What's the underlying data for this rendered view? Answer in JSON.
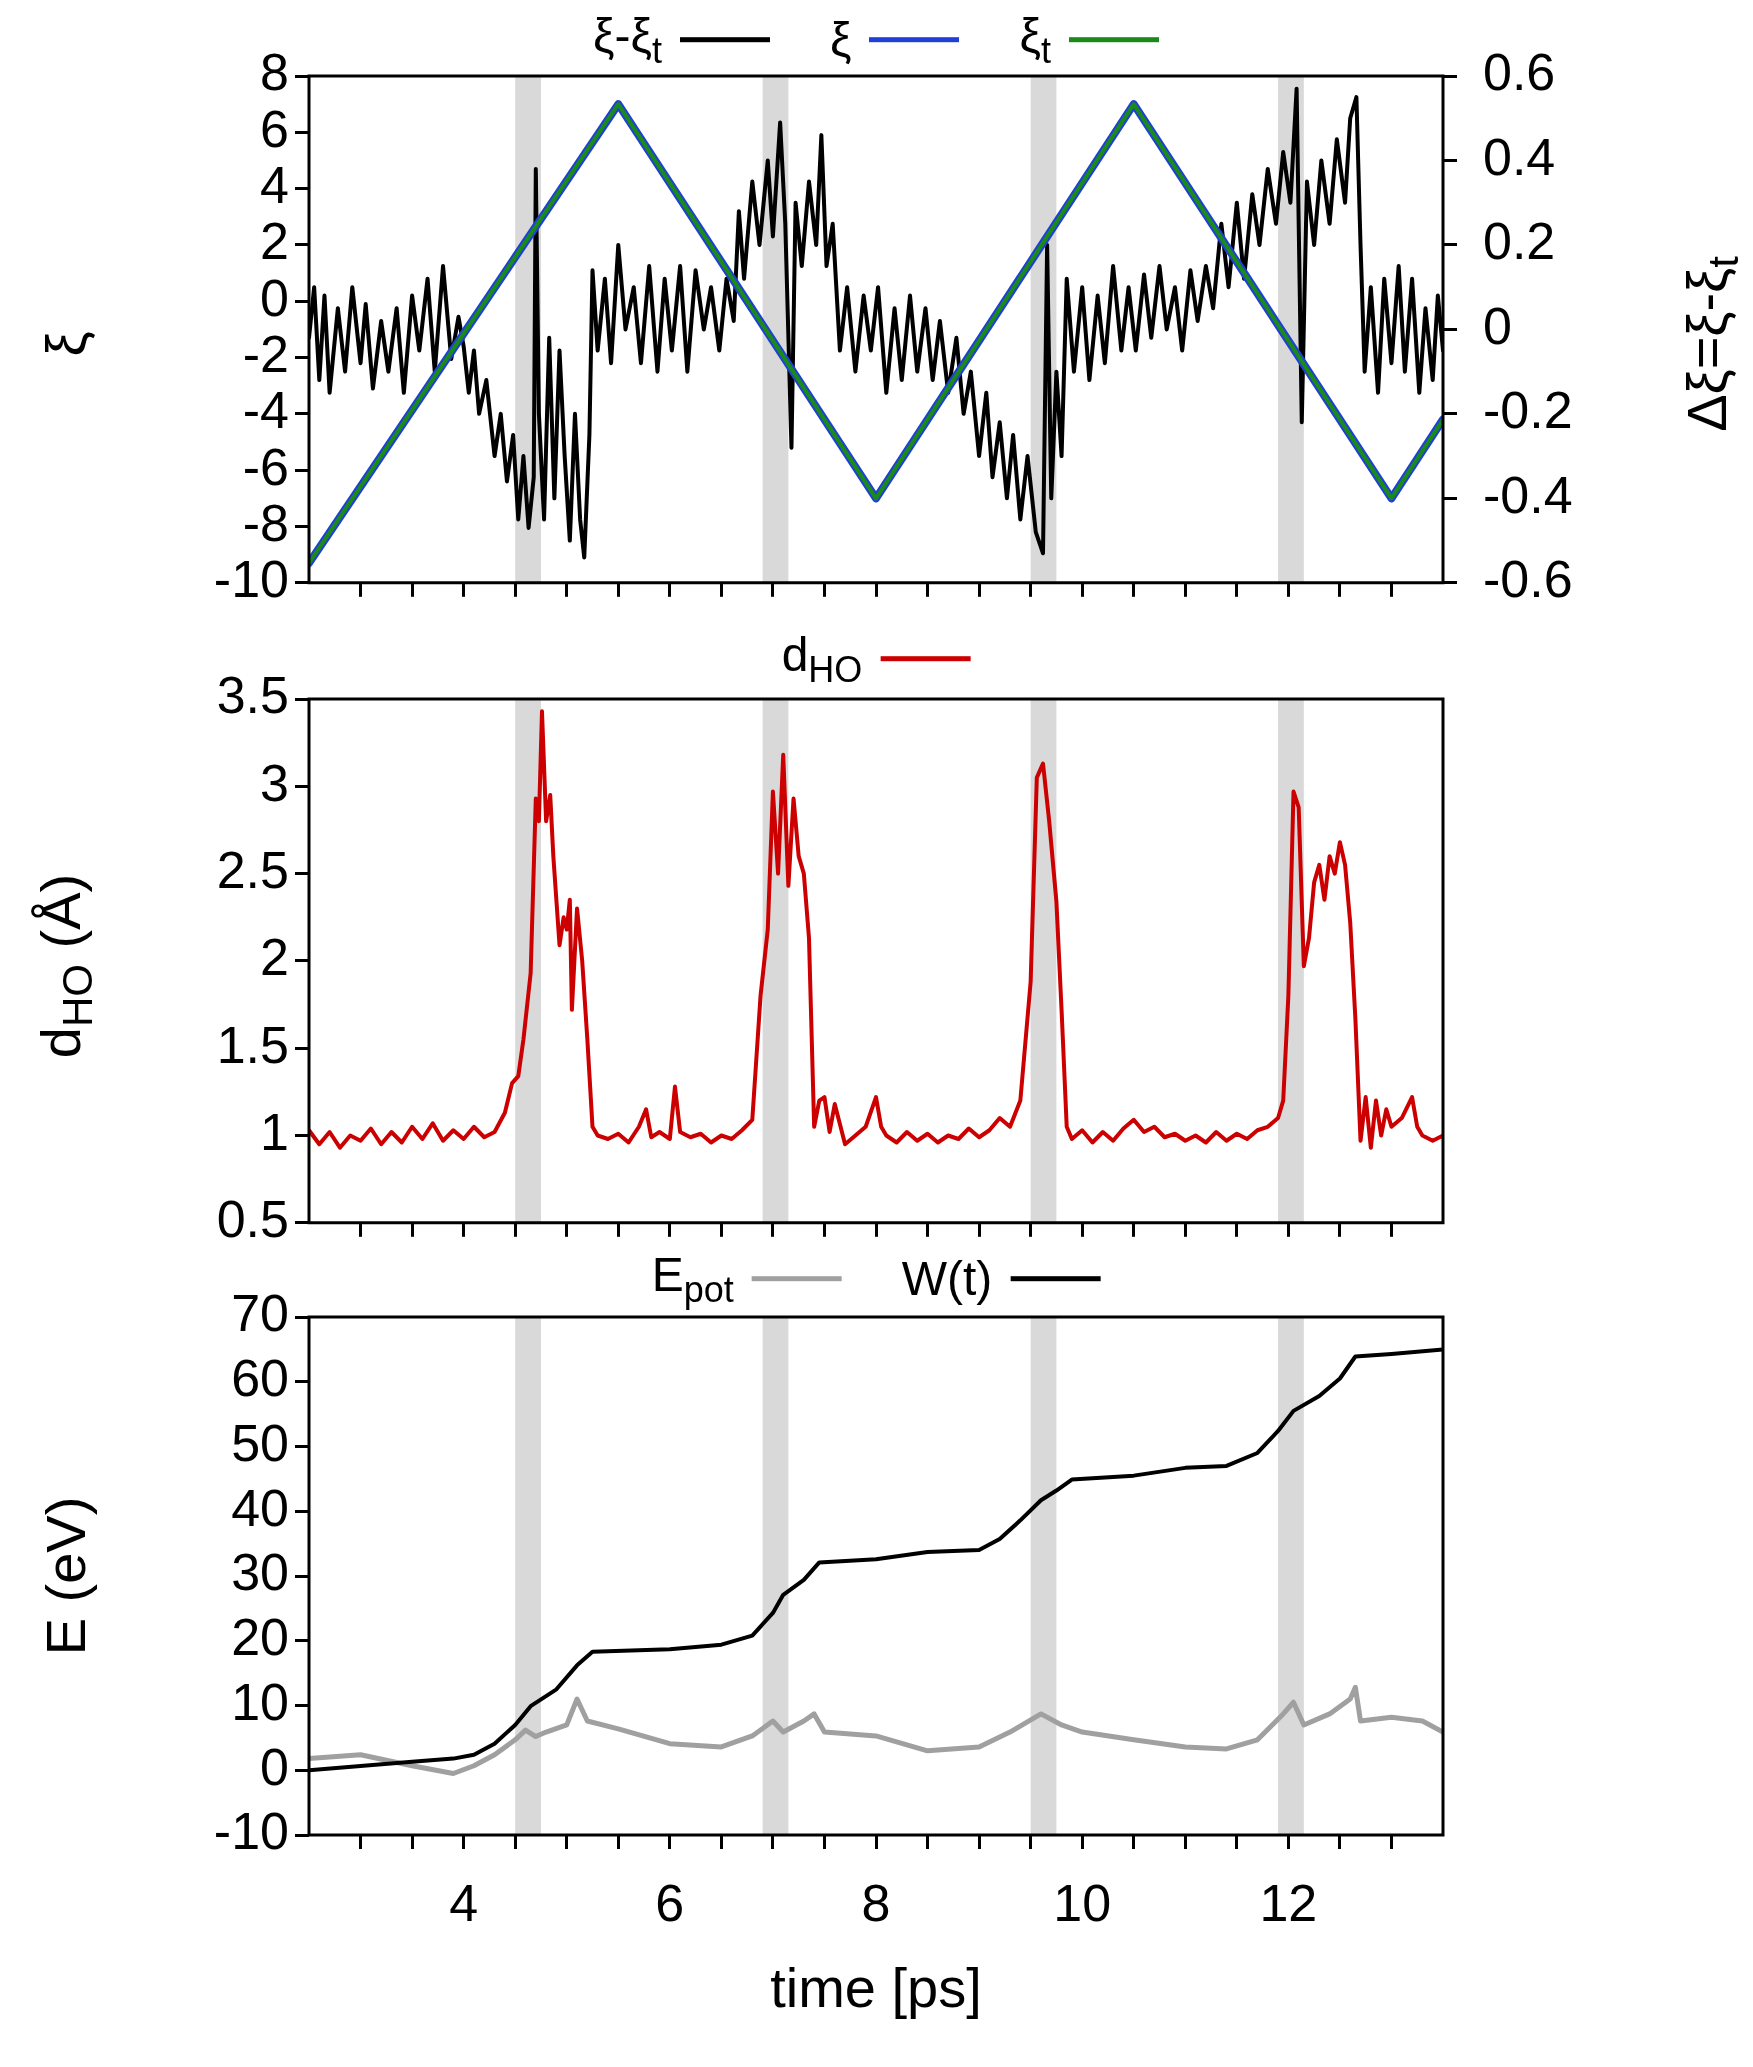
{
  "chart_data": [
    {
      "type": "line",
      "ylabel": "ξ",
      "y2label": "Δξ=ξ-ξ$_{t}$",
      "legend": "top",
      "tick_labels": "y",
      "xlim": [
        2.5,
        13.5
      ],
      "xticks": [
        {
          "value": 3,
          "label": null
        },
        {
          "value": 3.5,
          "label": null
        },
        4,
        {
          "value": 4.5,
          "label": null
        },
        {
          "value": 5,
          "label": null
        },
        {
          "value": 5.5,
          "label": null
        },
        6,
        {
          "value": 6.5,
          "label": null
        },
        {
          "value": 7,
          "label": null
        },
        {
          "value": 7.5,
          "label": null
        },
        8,
        {
          "value": 8.5,
          "label": null
        },
        {
          "value": 9,
          "label": null
        },
        {
          "value": 9.5,
          "label": null
        },
        10,
        {
          "value": 10.5,
          "label": null
        },
        {
          "value": 11,
          "label": null
        },
        {
          "value": 11.5,
          "label": null
        },
        12,
        {
          "value": 12.5,
          "label": null
        },
        {
          "value": 13,
          "label": null
        }
      ],
      "ylim": [
        -10,
        8
      ],
      "yticks": [
        -10,
        -8,
        -6,
        -4,
        -2,
        0,
        2,
        4,
        6,
        8
      ],
      "y2lim": [
        -0.6,
        0.6
      ],
      "y2ticks": [
        -0.6,
        -0.4,
        -0.2,
        0,
        0.2,
        0.4,
        0.6
      ],
      "bands": [
        {
          "axis": "x",
          "from": 4.5,
          "to": 4.75,
          "color": "#d9d9d9"
        },
        {
          "axis": "x",
          "from": 6.9,
          "to": 7.15,
          "color": "#d9d9d9"
        },
        {
          "axis": "x",
          "from": 9.5,
          "to": 9.75,
          "color": "#d9d9d9"
        },
        {
          "axis": "x",
          "from": 11.9,
          "to": 12.15,
          "color": "#d9d9d9"
        }
      ],
      "series": [
        {
          "name": "ξ-ξ$_{t}$",
          "color": "#000000",
          "axis": "y2",
          "x": [
            2.5,
            2.55,
            2.6,
            2.65,
            2.7,
            2.78,
            2.85,
            2.92,
            3.0,
            3.05,
            3.12,
            3.2,
            3.27,
            3.35,
            3.42,
            3.5,
            3.57,
            3.65,
            3.72,
            3.8,
            3.88,
            3.95,
            4.0,
            4.05,
            4.1,
            4.15,
            4.22,
            4.3,
            4.36,
            4.42,
            4.48,
            4.53,
            4.58,
            4.63,
            4.68,
            4.7,
            4.73,
            4.78,
            4.83,
            4.88,
            4.93,
            4.98,
            5.03,
            5.08,
            5.13,
            5.17,
            5.22,
            5.25,
            5.3,
            5.37,
            5.43,
            5.5,
            5.57,
            5.65,
            5.72,
            5.8,
            5.88,
            5.95,
            6.02,
            6.1,
            6.17,
            6.25,
            6.33,
            6.4,
            6.48,
            6.55,
            6.62,
            6.67,
            6.72,
            6.8,
            6.87,
            6.95,
            7.0,
            7.07,
            7.12,
            7.18,
            7.22,
            7.28,
            7.35,
            7.42,
            7.47,
            7.52,
            7.58,
            7.65,
            7.72,
            7.8,
            7.88,
            7.95,
            8.02,
            8.1,
            8.18,
            8.25,
            8.33,
            8.4,
            8.48,
            8.55,
            8.62,
            8.7,
            8.78,
            8.85,
            8.92,
            9.0,
            9.07,
            9.13,
            9.2,
            9.27,
            9.33,
            9.4,
            9.47,
            9.55,
            9.62,
            9.66,
            9.7,
            9.75,
            9.8,
            9.85,
            9.92,
            10.0,
            10.07,
            10.15,
            10.22,
            10.3,
            10.38,
            10.45,
            10.52,
            10.6,
            10.67,
            10.75,
            10.82,
            10.9,
            10.97,
            11.05,
            11.12,
            11.2,
            11.27,
            11.35,
            11.42,
            11.5,
            11.57,
            11.65,
            11.72,
            11.8,
            11.88,
            11.95,
            12.02,
            12.08,
            12.13,
            12.18,
            12.25,
            12.32,
            12.4,
            12.47,
            12.55,
            12.6,
            12.66,
            12.7,
            12.74,
            12.8,
            12.87,
            12.93,
            13.0,
            13.07,
            13.13,
            13.2,
            13.27,
            13.33,
            13.4,
            13.45,
            13.5
          ],
          "values": [
            -0.02,
            0.1,
            -0.12,
            0.08,
            -0.15,
            0.05,
            -0.1,
            0.1,
            -0.08,
            0.06,
            -0.14,
            0.02,
            -0.1,
            0.05,
            -0.15,
            0.08,
            -0.05,
            0.12,
            -0.1,
            0.15,
            -0.07,
            0.03,
            -0.04,
            -0.15,
            -0.05,
            -0.2,
            -0.12,
            -0.3,
            -0.2,
            -0.36,
            -0.25,
            -0.45,
            -0.3,
            -0.47,
            -0.35,
            0.38,
            -0.2,
            -0.45,
            -0.02,
            -0.4,
            -0.05,
            -0.3,
            -0.5,
            -0.2,
            -0.45,
            -0.54,
            -0.25,
            0.14,
            -0.05,
            0.12,
            -0.08,
            0.2,
            0.0,
            0.1,
            -0.08,
            0.15,
            -0.1,
            0.12,
            -0.05,
            0.15,
            -0.1,
            0.14,
            0.0,
            0.1,
            -0.05,
            0.12,
            0.02,
            0.28,
            0.12,
            0.35,
            0.2,
            0.4,
            0.22,
            0.49,
            0.25,
            -0.28,
            0.3,
            0.15,
            0.35,
            0.2,
            0.46,
            0.15,
            0.25,
            -0.05,
            0.1,
            -0.1,
            0.08,
            -0.05,
            0.1,
            -0.15,
            0.05,
            -0.12,
            0.08,
            -0.1,
            0.05,
            -0.12,
            0.02,
            -0.15,
            -0.02,
            -0.2,
            -0.1,
            -0.3,
            -0.15,
            -0.35,
            -0.22,
            -0.4,
            -0.25,
            -0.45,
            -0.3,
            -0.48,
            -0.53,
            0.2,
            -0.4,
            -0.1,
            -0.3,
            0.12,
            -0.1,
            0.1,
            -0.12,
            0.08,
            -0.08,
            0.15,
            -0.05,
            0.1,
            -0.05,
            0.13,
            -0.02,
            0.15,
            0.0,
            0.1,
            -0.05,
            0.14,
            0.02,
            0.15,
            0.05,
            0.25,
            0.1,
            0.3,
            0.12,
            0.32,
            0.2,
            0.38,
            0.25,
            0.42,
            0.3,
            0.57,
            -0.22,
            0.35,
            0.2,
            0.4,
            0.25,
            0.45,
            0.3,
            0.5,
            0.55,
            0.2,
            -0.1,
            0.1,
            -0.15,
            0.12,
            -0.08,
            0.15,
            -0.1,
            0.12,
            -0.15,
            0.05,
            -0.12,
            0.08,
            -0.05
          ]
        },
        {
          "name": "ξ",
          "color": "#1f3fd6",
          "x": [
            2.5,
            5.5,
            8.0,
            10.5,
            13.0,
            13.5
          ],
          "values": [
            -9.3,
            7,
            -7,
            7,
            -7,
            -4.2
          ]
        },
        {
          "name": "ξ$_{t}$",
          "color": "#1a8a1a",
          "x": [
            2.5,
            5.5,
            8.0,
            10.5,
            13.0,
            13.5
          ],
          "values": [
            -9.3,
            7,
            -7,
            7,
            -7,
            -4.2
          ]
        }
      ]
    },
    {
      "type": "line",
      "ylabel": "d$_{HO}$ (Å)",
      "legend": "top",
      "tick_labels": "y",
      "xlim": [
        2.5,
        13.5
      ],
      "xticks": [
        {
          "value": 3,
          "label": null
        },
        {
          "value": 3.5,
          "label": null
        },
        4,
        {
          "value": 4.5,
          "label": null
        },
        {
          "value": 5,
          "label": null
        },
        {
          "value": 5.5,
          "label": null
        },
        6,
        {
          "value": 6.5,
          "label": null
        },
        {
          "value": 7,
          "label": null
        },
        {
          "value": 7.5,
          "label": null
        },
        8,
        {
          "value": 8.5,
          "label": null
        },
        {
          "value": 9,
          "label": null
        },
        {
          "value": 9.5,
          "label": null
        },
        10,
        {
          "value": 10.5,
          "label": null
        },
        {
          "value": 11,
          "label": null
        },
        {
          "value": 11.5,
          "label": null
        },
        12,
        {
          "value": 12.5,
          "label": null
        },
        {
          "value": 13,
          "label": null
        }
      ],
      "ylim": [
        0.5,
        3.5
      ],
      "yticks": [
        0.5,
        1,
        1.5,
        2,
        2.5,
        3,
        3.5
      ],
      "bands": [
        {
          "axis": "x",
          "from": 4.5,
          "to": 4.75,
          "color": "#d9d9d9"
        },
        {
          "axis": "x",
          "from": 6.9,
          "to": 7.15,
          "color": "#d9d9d9"
        },
        {
          "axis": "x",
          "from": 9.5,
          "to": 9.75,
          "color": "#d9d9d9"
        },
        {
          "axis": "x",
          "from": 11.9,
          "to": 12.15,
          "color": "#d9d9d9"
        }
      ],
      "series": [
        {
          "name": "d$_{HO}$",
          "color": "#cc0000",
          "x": [
            2.5,
            2.6,
            2.7,
            2.8,
            2.9,
            3.0,
            3.1,
            3.2,
            3.3,
            3.4,
            3.5,
            3.6,
            3.7,
            3.8,
            3.9,
            4.0,
            4.1,
            4.2,
            4.3,
            4.4,
            4.47,
            4.53,
            4.58,
            4.65,
            4.7,
            4.73,
            4.76,
            4.8,
            4.84,
            4.87,
            4.93,
            4.97,
            5.0,
            5.03,
            5.05,
            5.1,
            5.15,
            5.2,
            5.25,
            5.3,
            5.4,
            5.5,
            5.6,
            5.7,
            5.77,
            5.82,
            5.9,
            6.0,
            6.05,
            6.1,
            6.2,
            6.3,
            6.4,
            6.5,
            6.6,
            6.7,
            6.8,
            6.88,
            6.95,
            7.0,
            7.05,
            7.1,
            7.15,
            7.2,
            7.25,
            7.3,
            7.35,
            7.4,
            7.45,
            7.5,
            7.55,
            7.6,
            7.7,
            7.8,
            7.9,
            8.0,
            8.05,
            8.1,
            8.2,
            8.3,
            8.4,
            8.5,
            8.6,
            8.7,
            8.8,
            8.9,
            9.0,
            9.1,
            9.2,
            9.3,
            9.4,
            9.5,
            9.56,
            9.62,
            9.68,
            9.75,
            9.8,
            9.85,
            9.9,
            10.0,
            10.1,
            10.2,
            10.3,
            10.4,
            10.5,
            10.6,
            10.7,
            10.8,
            10.9,
            11.0,
            11.1,
            11.2,
            11.3,
            11.4,
            11.5,
            11.6,
            11.7,
            11.8,
            11.9,
            11.95,
            12.0,
            12.05,
            12.1,
            12.15,
            12.2,
            12.25,
            12.3,
            12.35,
            12.4,
            12.45,
            12.5,
            12.55,
            12.6,
            12.65,
            12.7,
            12.75,
            12.8,
            12.85,
            12.9,
            12.95,
            13.0,
            13.1,
            13.2,
            13.25,
            13.3,
            13.4,
            13.5
          ],
          "values": [
            1.03,
            0.95,
            1.02,
            0.93,
            1.0,
            0.97,
            1.04,
            0.95,
            1.02,
            0.96,
            1.05,
            0.98,
            1.07,
            0.97,
            1.03,
            0.98,
            1.05,
            0.99,
            1.02,
            1.13,
            1.3,
            1.34,
            1.55,
            1.93,
            2.93,
            2.8,
            3.43,
            2.8,
            2.95,
            2.6,
            2.09,
            2.25,
            2.18,
            2.35,
            1.72,
            2.3,
            2.0,
            1.55,
            1.05,
            1.0,
            0.98,
            1.01,
            0.96,
            1.05,
            1.15,
            0.99,
            1.02,
            0.98,
            1.28,
            1.02,
            0.99,
            1.01,
            0.96,
            1.0,
            0.98,
            1.03,
            1.09,
            1.8,
            2.18,
            2.97,
            2.5,
            3.18,
            2.43,
            2.93,
            2.6,
            2.5,
            2.13,
            1.05,
            1.2,
            1.22,
            1.02,
            1.18,
            0.95,
            1.0,
            1.05,
            1.22,
            1.05,
            1.0,
            0.96,
            1.02,
            0.97,
            1.01,
            0.96,
            1.0,
            0.98,
            1.04,
            0.99,
            1.03,
            1.1,
            1.05,
            1.2,
            1.88,
            3.05,
            3.13,
            2.8,
            2.34,
            1.72,
            1.05,
            0.98,
            1.03,
            0.96,
            1.02,
            0.97,
            1.04,
            1.09,
            1.02,
            1.05,
            0.99,
            1.01,
            0.97,
            1.0,
            0.96,
            1.02,
            0.97,
            1.01,
            0.98,
            1.03,
            1.05,
            1.1,
            1.2,
            1.8,
            2.97,
            2.88,
            1.97,
            2.13,
            2.45,
            2.55,
            2.35,
            2.6,
            2.5,
            2.68,
            2.55,
            2.22,
            1.67,
            0.97,
            1.22,
            0.93,
            1.2,
            1.0,
            1.15,
            1.05,
            1.1,
            1.22,
            1.05,
            1.0,
            0.97,
            1.0
          ]
        }
      ]
    },
    {
      "type": "line",
      "ylabel": "E (eV)",
      "xlabel": "time [ps]",
      "legend": "top",
      "xlim": [
        2.5,
        13.5
      ],
      "xticks": [
        {
          "value": 3,
          "label": null
        },
        {
          "value": 3.5,
          "label": null
        },
        4,
        {
          "value": 4.5,
          "label": null
        },
        {
          "value": 5,
          "label": null
        },
        {
          "value": 5.5,
          "label": null
        },
        6,
        {
          "value": 6.5,
          "label": null
        },
        {
          "value": 7,
          "label": null
        },
        {
          "value": 7.5,
          "label": null
        },
        8,
        {
          "value": 8.5,
          "label": null
        },
        {
          "value": 9,
          "label": null
        },
        {
          "value": 9.5,
          "label": null
        },
        10,
        {
          "value": 10.5,
          "label": null
        },
        {
          "value": 11,
          "label": null
        },
        {
          "value": 11.5,
          "label": null
        },
        12,
        {
          "value": 12.5,
          "label": null
        },
        {
          "value": 13,
          "label": null
        }
      ],
      "ylim": [
        -10,
        70
      ],
      "yticks": [
        -10,
        0,
        10,
        20,
        30,
        40,
        50,
        60,
        70
      ],
      "bands": [
        {
          "axis": "x",
          "from": 4.5,
          "to": 4.75,
          "color": "#d9d9d9"
        },
        {
          "axis": "x",
          "from": 6.9,
          "to": 7.15,
          "color": "#d9d9d9"
        },
        {
          "axis": "x",
          "from": 9.5,
          "to": 9.75,
          "color": "#d9d9d9"
        },
        {
          "axis": "x",
          "from": 11.9,
          "to": 12.15,
          "color": "#d9d9d9"
        }
      ],
      "series": [
        {
          "name": "E$_{pot}$",
          "color": "#a0a0a0",
          "x": [
            2.5,
            3.0,
            3.5,
            3.9,
            4.1,
            4.3,
            4.5,
            4.6,
            4.7,
            4.8,
            5.0,
            5.1,
            5.2,
            5.5,
            6.0,
            6.5,
            6.8,
            7.0,
            7.1,
            7.3,
            7.4,
            7.5,
            8.0,
            8.5,
            9.0,
            9.3,
            9.6,
            9.8,
            10.0,
            10.5,
            11.0,
            11.4,
            11.7,
            11.95,
            12.05,
            12.15,
            12.4,
            12.6,
            12.65,
            12.7,
            13.0,
            13.3,
            13.5
          ],
          "values": [
            1.8,
            2.4,
            0.7,
            -0.5,
            0.7,
            2.4,
            4.7,
            6.2,
            5.2,
            5.9,
            7,
            11,
            7.6,
            6.4,
            4.1,
            3.6,
            5.3,
            7.6,
            5.9,
            7.6,
            8.7,
            5.9,
            5.3,
            3,
            3.6,
            5.9,
            8.7,
            7,
            5.9,
            4.7,
            3.6,
            3.3,
            4.7,
            8.7,
            10.5,
            7,
            8.7,
            11,
            12.8,
            7.6,
            8.2,
            7.6,
            5.9
          ]
        },
        {
          "name": "W(t)",
          "color": "#000000",
          "x": [
            2.5,
            3.5,
            3.9,
            4.1,
            4.3,
            4.5,
            4.65,
            4.9,
            5.1,
            5.25,
            6.0,
            6.5,
            6.8,
            7.0,
            7.1,
            7.3,
            7.45,
            8.0,
            8.5,
            9.0,
            9.2,
            9.4,
            9.6,
            9.75,
            9.9,
            10.5,
            11.0,
            11.4,
            11.7,
            11.9,
            12.05,
            12.3,
            12.5,
            12.65,
            13.0,
            13.5
          ],
          "values": [
            0,
            1.3,
            1.8,
            2.4,
            4.1,
            7,
            9.9,
            12.5,
            16.2,
            18.3,
            18.7,
            19.4,
            20.8,
            24.3,
            27.1,
            29.4,
            32.1,
            32.6,
            33.7,
            34,
            35.7,
            38.6,
            41.7,
            43.2,
            44.9,
            45.5,
            46.7,
            47,
            49,
            52.4,
            55.5,
            57.8,
            60.5,
            63.9,
            64.3,
            65
          ]
        }
      ]
    }
  ]
}
